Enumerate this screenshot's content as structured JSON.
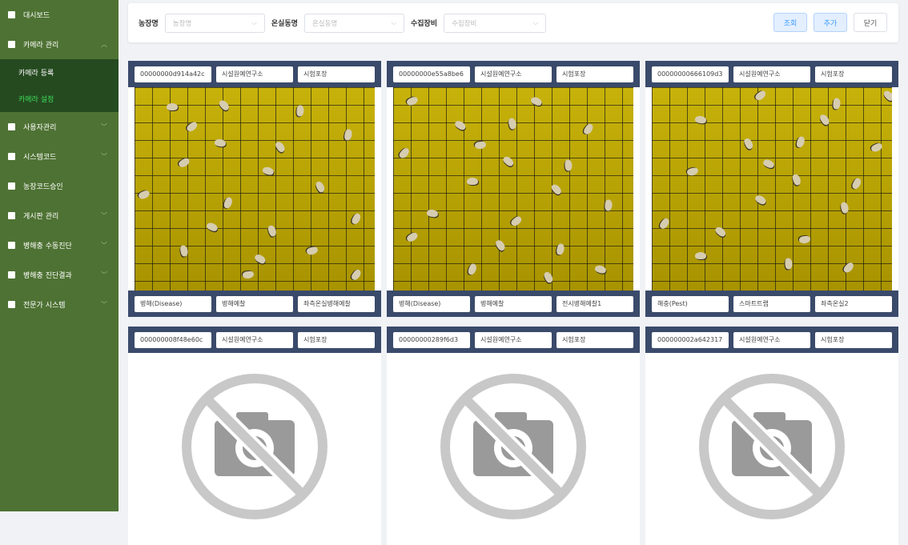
{
  "sidebar": {
    "items": [
      {
        "label": "대시보드",
        "icon": "dashboard-icon",
        "chevron": false
      },
      {
        "label": "카메라 관리",
        "icon": "video-camera-icon",
        "chevron": "up",
        "children": [
          {
            "label": "카메라 등록",
            "active": false
          },
          {
            "label": "카메라 설정",
            "active": true
          }
        ]
      },
      {
        "label": "사용자관리",
        "icon": "users-icon",
        "chevron": "down"
      },
      {
        "label": "시스템코드",
        "icon": "code-icon",
        "chevron": "down"
      },
      {
        "label": "농장코드승인",
        "icon": "document-icon",
        "chevron": false
      },
      {
        "label": "게시판 관리",
        "icon": "board-icon",
        "chevron": "down"
      },
      {
        "label": "병해충 수동진단",
        "icon": "table-icon",
        "chevron": "down"
      },
      {
        "label": "병해충 진단결과",
        "icon": "list-icon",
        "chevron": "down"
      },
      {
        "label": "전문가 시스템",
        "icon": "file-icon",
        "chevron": "down"
      }
    ]
  },
  "filters": [
    {
      "label": "농장명",
      "placeholder": "농장명"
    },
    {
      "label": "온실동명",
      "placeholder": "온실동명"
    },
    {
      "label": "수집장비",
      "placeholder": "수집장비"
    }
  ],
  "buttons": {
    "search": "조회",
    "add": "추가",
    "close": "닫기"
  },
  "colors": {
    "sidebar": "#4e7233",
    "submenu": "#254a20",
    "active": "#3ddc5a",
    "card_bar": "#3a4a6b"
  },
  "cards": [
    {
      "id": "00000000d914a42c",
      "org": "시설원예연구소",
      "site": "시험포장",
      "type": "병해(Disease)",
      "device": "병해예찰",
      "location": "좌측온실병해예찰",
      "has_image": true
    },
    {
      "id": "00000000e55a8be6",
      "org": "시설원예연구소",
      "site": "시험포장",
      "type": "병해(Disease)",
      "device": "병해예찰",
      "location": "전시병해예찰1",
      "has_image": true
    },
    {
      "id": "00000000666109d3",
      "org": "시설원예연구소",
      "site": "시험포장",
      "type": "해충(Pest)",
      "device": "스마트트랩",
      "location": "좌측온실2",
      "has_image": true
    },
    {
      "id": "000000008f48e60c",
      "org": "시설원예연구소",
      "site": "시험포장",
      "has_image": false
    },
    {
      "id": "00000000289f6d3",
      "org": "시설원예연구소",
      "site": "시험포장",
      "has_image": false
    },
    {
      "id": "000000002a642317",
      "org": "시설원예연구소",
      "site": "시험포장",
      "has_image": false
    }
  ]
}
